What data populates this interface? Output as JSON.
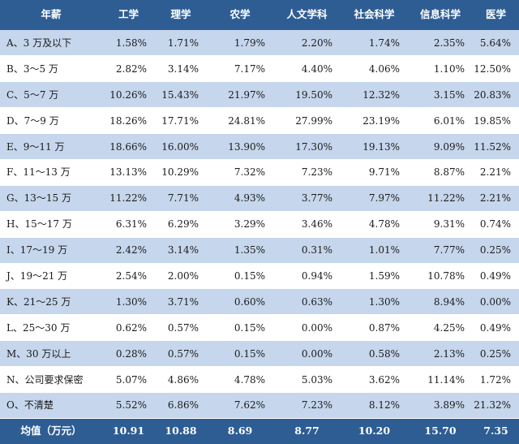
{
  "table": {
    "headers": [
      "年薪",
      "工学",
      "理学",
      "农学",
      "人文学科",
      "社会科学",
      "信息科学",
      "医学"
    ],
    "rows": [
      [
        "A、3 万及以下",
        "1.58%",
        "1.71%",
        "1.79%",
        "2.20%",
        "1.74%",
        "2.35%",
        "5.64%"
      ],
      [
        "B、3～5 万",
        "2.82%",
        "3.14%",
        "7.17%",
        "4.40%",
        "4.06%",
        "1.10%",
        "12.50%"
      ],
      [
        "C、5～7 万",
        "10.26%",
        "15.43%",
        "21.97%",
        "19.50%",
        "12.32%",
        "3.15%",
        "20.83%"
      ],
      [
        "D、7～9 万",
        "18.26%",
        "17.71%",
        "24.81%",
        "27.99%",
        "23.19%",
        "6.01%",
        "19.85%"
      ],
      [
        "E、9～11 万",
        "18.66%",
        "16.00%",
        "13.90%",
        "17.30%",
        "19.13%",
        "9.09%",
        "11.52%"
      ],
      [
        "F、11～13 万",
        "13.13%",
        "10.29%",
        "7.32%",
        "7.23%",
        "9.71%",
        "8.87%",
        "2.21%"
      ],
      [
        "G、13～15 万",
        "11.22%",
        "7.71%",
        "4.93%",
        "3.77%",
        "7.97%",
        "11.22%",
        "2.21%"
      ],
      [
        "H、15～17 万",
        "6.31%",
        "6.29%",
        "3.29%",
        "3.46%",
        "4.78%",
        "9.31%",
        "0.74%"
      ],
      [
        "I、17～19 万",
        "2.42%",
        "3.14%",
        "1.35%",
        "0.31%",
        "1.01%",
        "7.77%",
        "0.25%"
      ],
      [
        "J、19～21 万",
        "2.54%",
        "2.00%",
        "0.15%",
        "0.94%",
        "1.59%",
        "10.78%",
        "0.49%"
      ],
      [
        "K、21～25 万",
        "1.30%",
        "3.71%",
        "0.60%",
        "0.63%",
        "1.30%",
        "8.94%",
        "0.00%"
      ],
      [
        "L、25～30 万",
        "0.62%",
        "0.57%",
        "0.15%",
        "0.00%",
        "0.87%",
        "4.25%",
        "0.49%"
      ],
      [
        "M、30 万以上",
        "0.28%",
        "0.57%",
        "0.15%",
        "0.00%",
        "0.58%",
        "2.13%",
        "0.25%"
      ],
      [
        "N、公司要求保密",
        "5.07%",
        "4.86%",
        "4.78%",
        "5.03%",
        "3.62%",
        "11.14%",
        "1.72%"
      ],
      [
        "O、不清楚",
        "5.52%",
        "6.86%",
        "7.62%",
        "7.23%",
        "8.12%",
        "3.89%",
        "21.32%"
      ]
    ],
    "footer": [
      "均值（万元）",
      "10.91",
      "10.88",
      "8.69",
      "8.77",
      "10.20",
      "15.70",
      "7.35"
    ]
  },
  "colors": {
    "header_bg": "#2e5d93",
    "header_text": "#ffffff",
    "stripe_bg": "#c6d6ec",
    "plain_bg": "#ffffff"
  }
}
